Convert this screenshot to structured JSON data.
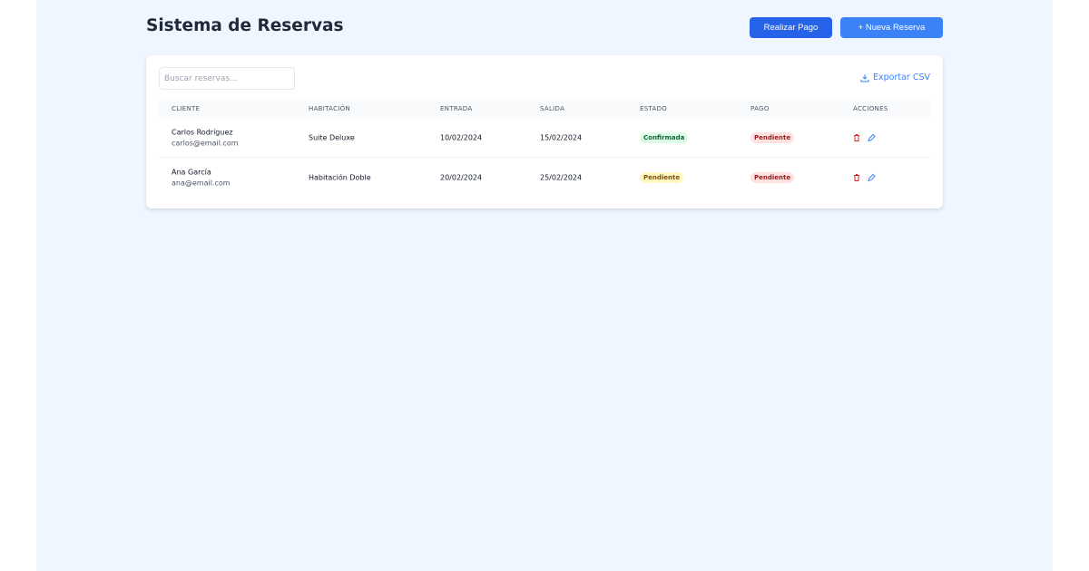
{
  "header": {
    "title": "Sistema de Reservas",
    "pay_label": "Realizar Pago",
    "new_label": "+ Nueva Reserva"
  },
  "toolbar": {
    "search_placeholder": "Buscar reservas...",
    "export_label": "Exportar CSV"
  },
  "table": {
    "columns": [
      "CLIENTE",
      "HABITACIÓN",
      "ENTRADA",
      "SALIDA",
      "ESTADO",
      "PAGO",
      "ACCIONES"
    ],
    "rows": [
      {
        "name": "Carlos Rodríguez",
        "email": "carlos@email.com",
        "room": "Suite Deluxe",
        "in": "10/02/2024",
        "out": "15/02/2024",
        "status": "Confirmada",
        "payment": "Pendiente"
      },
      {
        "name": "Ana García",
        "email": "ana@email.com",
        "room": "Habitación Doble",
        "in": "20/02/2024",
        "out": "25/02/2024",
        "status": "Pendiente",
        "payment": "Pendiente"
      }
    ]
  },
  "colors": {
    "primary": "#2563eb",
    "secondary": "#3b82f6",
    "confirmed": "#dcfce7",
    "pending": "#fef9c3",
    "unpaid": "#fee2e2"
  }
}
